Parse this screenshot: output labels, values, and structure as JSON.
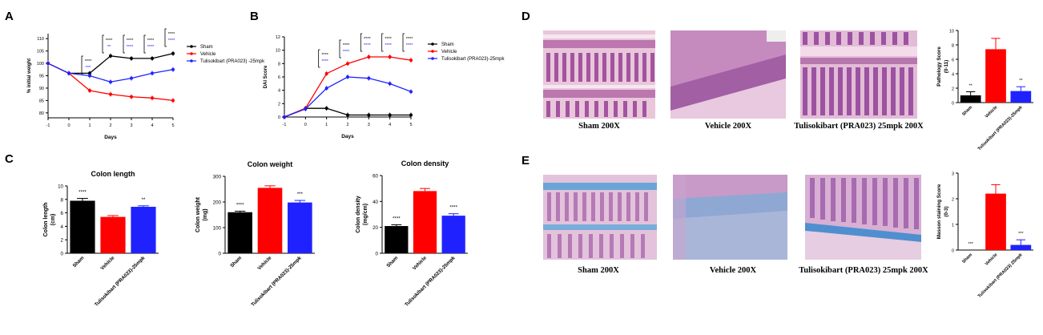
{
  "panels": {
    "A": "A",
    "B": "B",
    "C": "C",
    "D": "D",
    "E": "E"
  },
  "colors": {
    "sham": "#000000",
    "vehicle": "#ff0000",
    "tulisokibart": "#1f22ff"
  },
  "chart_data": [
    {
      "id": "A",
      "type": "line",
      "title": "",
      "xlabel": "Days",
      "ylabel": "% initial weight",
      "x": [
        -1,
        0,
        1,
        2,
        3,
        4,
        5
      ],
      "xticks": [
        "-1",
        "0",
        "1",
        "2",
        "3",
        "4",
        "5"
      ],
      "yticks": [
        "80",
        "85",
        "90",
        "95",
        "100",
        "105",
        "110"
      ],
      "ylim": [
        78,
        112
      ],
      "series": [
        {
          "name": "Sham",
          "color": "#000000",
          "values": [
            100,
            96,
            96,
            103,
            102,
            102,
            104
          ]
        },
        {
          "name": "Vehicle",
          "color": "#ff0000",
          "values": [
            100,
            96,
            89,
            87.5,
            86.5,
            86,
            85
          ]
        },
        {
          "name": "Tulisokibart (PRA023) -25mpk",
          "color": "#1f22ff",
          "values": [
            100,
            96,
            95,
            92.5,
            94,
            96,
            97.5
          ]
        }
      ],
      "sig_black": [
        "****",
        "****",
        "****",
        "****",
        "****"
      ],
      "sig_blue": [
        "***",
        "**",
        "****",
        "****",
        "****"
      ],
      "legend": "right"
    },
    {
      "id": "B",
      "type": "line",
      "title": "",
      "xlabel": "Days",
      "ylabel": "DAI Score",
      "x": [
        -1,
        0,
        1,
        2,
        3,
        4,
        5
      ],
      "xticks": [
        "-1",
        "0",
        "1",
        "2",
        "3",
        "4",
        "5"
      ],
      "yticks": [
        "0",
        "2",
        "4",
        "6",
        "8",
        "10",
        "12"
      ],
      "ylim": [
        0,
        12
      ],
      "series": [
        {
          "name": "Sham",
          "color": "#000000",
          "values": [
            0,
            1.3,
            1.3,
            0.3,
            0.3,
            0.3,
            0.3
          ]
        },
        {
          "name": "Vehicle",
          "color": "#ff0000",
          "values": [
            0,
            1.3,
            6.5,
            8,
            9,
            9,
            8.5
          ]
        },
        {
          "name": "Tulisokibart (PRA023)-25mpk",
          "color": "#1f22ff",
          "values": [
            0,
            1.2,
            4.3,
            6,
            5.8,
            5,
            3.8
          ]
        }
      ],
      "sig_black": [
        "****",
        "****",
        "****",
        "****",
        "****"
      ],
      "sig_blue": [
        "****",
        "****",
        "****",
        "****",
        "****"
      ],
      "legend": "right"
    },
    {
      "id": "C1",
      "type": "bar",
      "title": "Colon length",
      "ylabel": "Colon length\n(cm)",
      "categories": [
        "Sham",
        "Vehicle",
        "Tulisokibart (PRA023)-25mpk"
      ],
      "values": [
        7.8,
        5.4,
        6.9
      ],
      "errors": [
        0.35,
        0.2,
        0.15
      ],
      "colors": [
        "#000000",
        "#ff0000",
        "#1f22ff"
      ],
      "sig": [
        "****",
        "",
        "**"
      ],
      "yticks": [
        "0",
        "2",
        "4",
        "6",
        "8",
        "10"
      ],
      "ylim": [
        0,
        10
      ]
    },
    {
      "id": "C2",
      "type": "bar",
      "title": "Colon weight",
      "ylabel": "Colon weight\n(mg)",
      "categories": [
        "Sham",
        "Vehicle",
        "Tulisokibart (PRA023)-25mpk"
      ],
      "values": [
        160,
        255,
        198
      ],
      "errors": [
        4,
        8,
        8
      ],
      "colors": [
        "#000000",
        "#ff0000",
        "#1f22ff"
      ],
      "sig": [
        "****",
        "",
        "***"
      ],
      "yticks": [
        "0",
        "100",
        "200",
        "300"
      ],
      "ylim": [
        0,
        300
      ]
    },
    {
      "id": "C3",
      "type": "bar",
      "title": "Colon density",
      "ylabel": "Colon density\n(mg/cm)",
      "categories": [
        "Sham",
        "Vehicle",
        "Tulisokibart (PRA023)-25mpk"
      ],
      "values": [
        21,
        48,
        29
      ],
      "errors": [
        1,
        2,
        1.5
      ],
      "colors": [
        "#000000",
        "#ff0000",
        "#1f22ff"
      ],
      "sig": [
        "****",
        "",
        "****"
      ],
      "yticks": [
        "0",
        "20",
        "40",
        "60"
      ],
      "ylim": [
        0,
        60
      ]
    },
    {
      "id": "D",
      "type": "bar",
      "title": "",
      "ylabel": "Pathology Score\n(0-11)",
      "categories": [
        "Sham",
        "Vehicle",
        "Tulisokibart (PRA023)-25mpk"
      ],
      "values": [
        1.0,
        7.4,
        1.6
      ],
      "errors": [
        0.5,
        1.5,
        0.6
      ],
      "colors": [
        "#000000",
        "#ff0000",
        "#1f22ff"
      ],
      "sig": [
        "**",
        "",
        "**"
      ],
      "yticks": [
        "0",
        "2",
        "4",
        "6",
        "8",
        "10"
      ],
      "ylim": [
        0,
        10
      ]
    },
    {
      "id": "E",
      "type": "bar",
      "title": "",
      "ylabel": "Masson staining Score\n(0-3)",
      "categories": [
        "Sham",
        "Vehicle",
        "Tulisokibart (PRA023) 25mpk"
      ],
      "values": [
        0,
        2.2,
        0.2
      ],
      "errors": [
        0,
        0.35,
        0.2
      ],
      "colors": [
        "#000000",
        "#ff0000",
        "#1f22ff"
      ],
      "sig": [
        "***",
        "",
        "***"
      ],
      "yticks": [
        "0",
        "1",
        "2",
        "3"
      ],
      "ylim": [
        0,
        3
      ]
    }
  ],
  "images": {
    "d_captions": [
      "Sham 200X",
      "Vehicle 200X",
      "Tulisokibart (PRA023) 25mpk 200X"
    ],
    "e_captions": [
      "Sham 200X",
      "Vehicle 200X",
      "Tulisokibart (PRA023) 25mpk 200X"
    ]
  }
}
